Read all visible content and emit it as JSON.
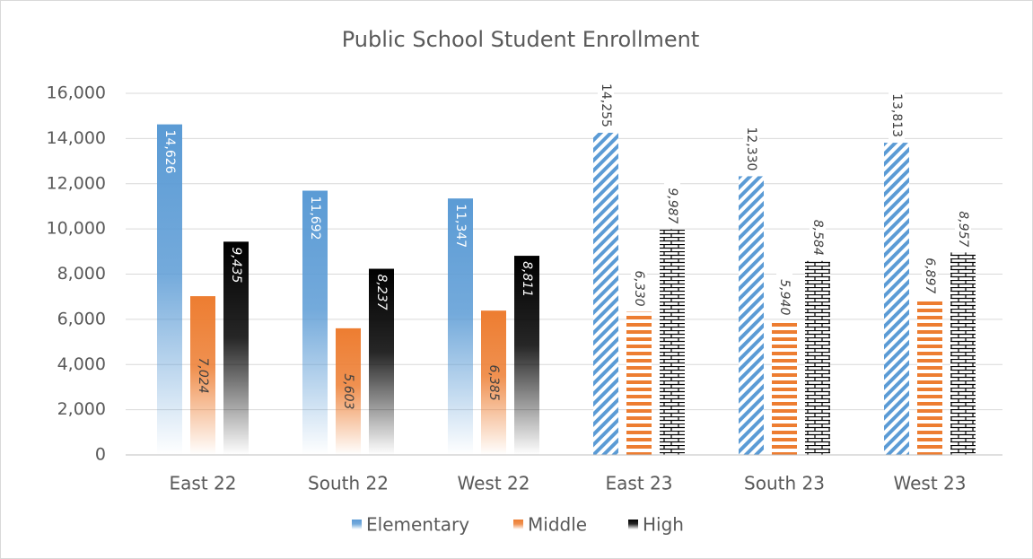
{
  "chart_data": {
    "type": "bar",
    "title": "Public School Student Enrollment",
    "categories": [
      "East 22",
      "South 22",
      "West 22",
      "East 23",
      "South 23",
      "West 23"
    ],
    "fill_styles": [
      "gradient",
      "gradient",
      "gradient",
      "pattern",
      "pattern",
      "pattern"
    ],
    "series": [
      {
        "name": "Elementary",
        "color": "#5b9bd5",
        "pattern": "diagonal",
        "values": [
          14626,
          11692,
          11347,
          14255,
          12330,
          13813
        ],
        "value_labels": [
          "14,626",
          "11,692",
          "11,347",
          "14,255",
          "12,330",
          "13,813"
        ]
      },
      {
        "name": "Middle",
        "color": "#ed7d31",
        "pattern": "horizontal",
        "values": [
          7024,
          5603,
          6385,
          6330,
          5940,
          6897
        ],
        "value_labels": [
          "7,024",
          "5,603",
          "6,385",
          "6,330",
          "5,940",
          "6,897"
        ]
      },
      {
        "name": "High",
        "color": "#000000",
        "pattern": "brick",
        "values": [
          9435,
          8237,
          8811,
          9987,
          8584,
          8957
        ],
        "value_labels": [
          "9,435",
          "8,237",
          "8,811",
          "9,987",
          "8,584",
          "8,957"
        ]
      }
    ],
    "ylim": [
      0,
      16000
    ],
    "yticks": [
      0,
      {
        "value": 2000,
        "label": "2,000"
      },
      {
        "value": 4000,
        "label": "4,000"
      },
      {
        "value": 6000,
        "label": "6,000"
      },
      {
        "value": 8000,
        "label": "8,000"
      },
      {
        "value": 10000,
        "label": "10,000"
      },
      {
        "value": 12000,
        "label": "12,000"
      },
      {
        "value": 14000,
        "label": "14,000"
      },
      {
        "value": 16000,
        "label": "16,000"
      }
    ],
    "grid": true,
    "legend": "bottom"
  }
}
